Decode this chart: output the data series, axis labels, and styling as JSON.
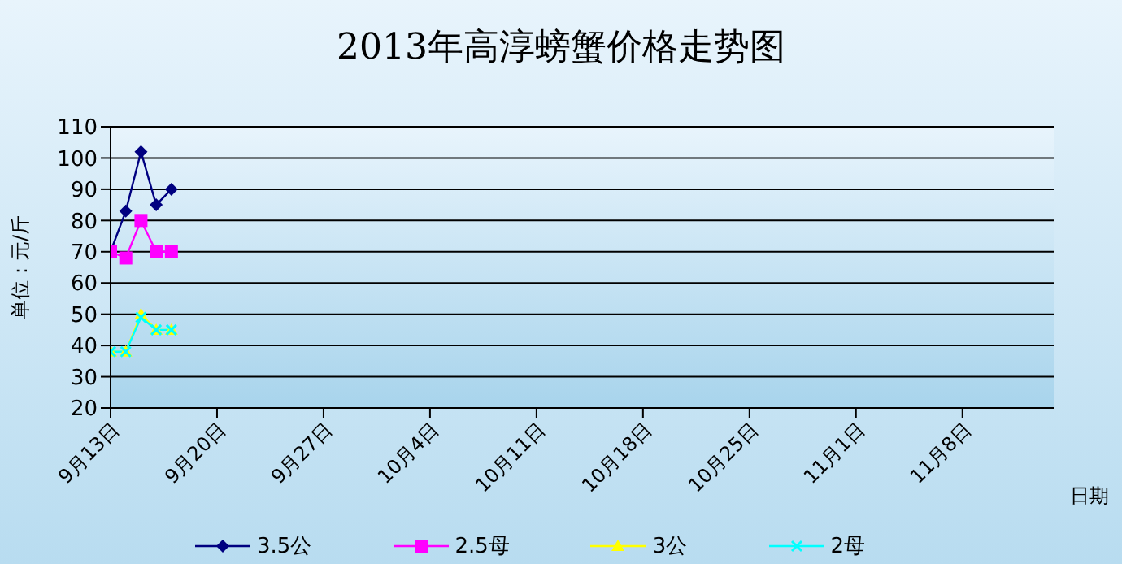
{
  "chart_data": {
    "type": "line",
    "title": "2013年高淳螃蟹价格走势图",
    "xlabel": "日期",
    "ylabel": "单位：元/斤",
    "x": [
      "2013-09-13",
      "2013-09-14",
      "2013-09-15",
      "2013-09-16",
      "2013-09-17"
    ],
    "xlim": [
      "2013-09-13",
      "2013-11-14"
    ],
    "xticks": [
      {
        "value": "2013-09-13",
        "label": "9月13日"
      },
      {
        "value": "2013-09-20",
        "label": "9月20日"
      },
      {
        "value": "2013-09-27",
        "label": "9月27日"
      },
      {
        "value": "2013-10-04",
        "label": "10月4日"
      },
      {
        "value": "2013-10-11",
        "label": "10月11日"
      },
      {
        "value": "2013-10-18",
        "label": "10月18日"
      },
      {
        "value": "2013-10-25",
        "label": "10月25日"
      },
      {
        "value": "2013-11-01",
        "label": "11月1日"
      },
      {
        "value": "2013-11-08",
        "label": "11月8日"
      }
    ],
    "ylim": [
      20,
      110
    ],
    "yticks": [
      20,
      30,
      40,
      50,
      60,
      70,
      80,
      90,
      100,
      110
    ],
    "grid": "y",
    "legend": "bottom",
    "series": [
      {
        "name": "3.5公",
        "color": "#000080",
        "marker": "diamond",
        "values": [
          70,
          83,
          102,
          85,
          90
        ]
      },
      {
        "name": "2.5母",
        "color": "#ff00ff",
        "marker": "square",
        "values": [
          70,
          68,
          80,
          70,
          70
        ]
      },
      {
        "name": "3公",
        "color": "#ffff00",
        "marker": "triangle",
        "values": [
          38,
          38,
          50,
          45,
          45
        ]
      },
      {
        "name": "2母",
        "color": "#00ffff",
        "marker": "cross",
        "values": [
          38,
          38,
          49,
          45,
          45
        ]
      }
    ]
  }
}
